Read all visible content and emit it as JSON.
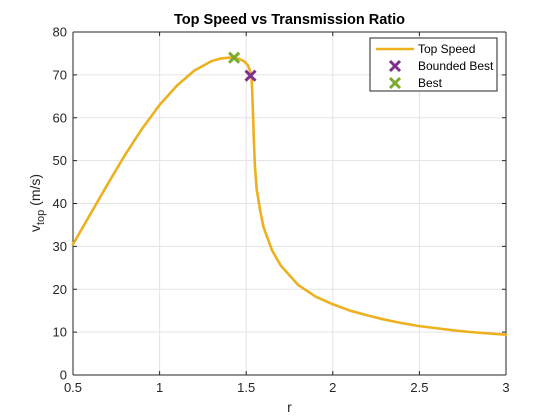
{
  "chart_data": {
    "type": "line",
    "title": "Top Speed vs Transmission Ratio",
    "xlabel": "r",
    "ylabel_main": "v",
    "ylabel_sub": "top",
    "ylabel_unit": " (m/s)",
    "xlim": [
      0.5,
      3
    ],
    "ylim": [
      0,
      80
    ],
    "xticks": [
      0.5,
      1,
      1.5,
      2,
      2.5,
      3
    ],
    "xtick_labels": [
      "0.5",
      "1",
      "1.5",
      "2",
      "2.5",
      "3"
    ],
    "yticks": [
      0,
      10,
      20,
      30,
      40,
      50,
      60,
      70,
      80
    ],
    "ytick_labels": [
      "0",
      "10",
      "20",
      "30",
      "40",
      "50",
      "60",
      "70",
      "80"
    ],
    "grid": true,
    "legend_position": "top-right",
    "series": [
      {
        "name": "Top Speed",
        "kind": "line",
        "color": "#EDB120",
        "x": [
          0.5,
          0.6,
          0.7,
          0.8,
          0.9,
          1.0,
          1.1,
          1.2,
          1.3,
          1.35,
          1.4,
          1.43,
          1.46,
          1.49,
          1.51,
          1.52,
          1.53,
          1.535,
          1.54,
          1.545,
          1.55,
          1.56,
          1.58,
          1.6,
          1.65,
          1.7,
          1.8,
          1.9,
          2.0,
          2.1,
          2.2,
          2.3,
          2.4,
          2.5,
          2.6,
          2.7,
          2.8,
          2.9,
          3.0
        ],
        "y": [
          30.5,
          37.5,
          44.5,
          51.3,
          57.5,
          63.0,
          67.5,
          71.0,
          73.2,
          73.8,
          74.0,
          74.0,
          73.7,
          73.1,
          72.2,
          71.2,
          69.8,
          66.0,
          60.0,
          54.0,
          49.0,
          43.5,
          38.5,
          34.5,
          29.0,
          25.5,
          21.0,
          18.3,
          16.5,
          15.0,
          13.9,
          12.9,
          12.1,
          11.4,
          10.9,
          10.4,
          10.0,
          9.7,
          9.4
        ]
      },
      {
        "name": "Bounded Best",
        "kind": "marker",
        "marker": "x",
        "color": "#7E2F8E",
        "x": [
          1.525
        ],
        "y": [
          69.8
        ]
      },
      {
        "name": "Best",
        "kind": "marker",
        "marker": "x",
        "color": "#77AC30",
        "x": [
          1.43
        ],
        "y": [
          74.0
        ]
      }
    ]
  }
}
